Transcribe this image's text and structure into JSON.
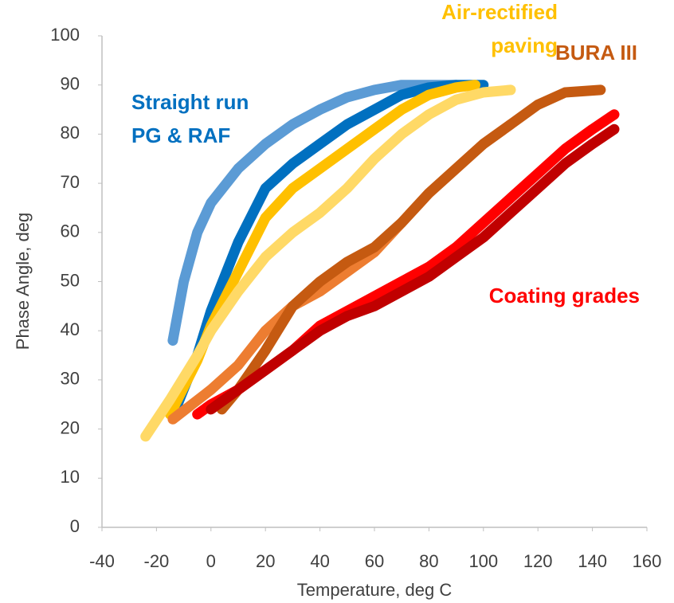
{
  "chart_data": {
    "type": "line",
    "x_label": "Temperature, deg C",
    "y_label": "Phase Angle, deg",
    "xlim": [
      -40,
      160
    ],
    "xticks": [
      -40,
      -20,
      0,
      20,
      40,
      60,
      80,
      100,
      120,
      140,
      160
    ],
    "ylim": [
      0,
      100
    ],
    "yticks": [
      0,
      10,
      20,
      30,
      40,
      50,
      60,
      70,
      80,
      90,
      100
    ],
    "grid": false,
    "series": [
      {
        "color": "#5b9bd5",
        "x": [
          -14,
          -10,
          -5,
          0,
          10,
          20,
          30,
          40,
          50,
          60,
          70,
          80,
          90
        ],
        "values": [
          38,
          50,
          60,
          66,
          73,
          78,
          82,
          85,
          87.5,
          89,
          90,
          90,
          90
        ]
      },
      {
        "color": "#0070c0",
        "x": [
          -13,
          -5,
          0,
          10,
          20,
          30,
          40,
          50,
          60,
          70,
          80,
          90,
          100
        ],
        "values": [
          24,
          35,
          44,
          58,
          69,
          74,
          78,
          82,
          85,
          88,
          89.5,
          90,
          90
        ]
      },
      {
        "color": "#ffc000",
        "x": [
          -15,
          -5,
          0,
          10,
          20,
          30,
          40,
          50,
          60,
          70,
          80,
          90,
          97
        ],
        "values": [
          23,
          34,
          41,
          52,
          63,
          69,
          73,
          77,
          81,
          85,
          88,
          89.5,
          90
        ]
      },
      {
        "color": "#ffd966",
        "x": [
          -24,
          -15,
          -5,
          0,
          10,
          20,
          30,
          40,
          50,
          60,
          70,
          80,
          90,
          100,
          110
        ],
        "values": [
          18.5,
          26,
          35,
          40,
          48,
          55,
          60,
          64,
          69,
          75,
          80,
          84,
          87,
          88.5,
          89
        ]
      },
      {
        "color": "#ed7d31",
        "x": [
          -14,
          0,
          10,
          20,
          30,
          40,
          50,
          60,
          70,
          80,
          90,
          100,
          110
        ],
        "values": [
          22,
          28,
          33,
          40,
          45,
          48,
          52,
          56,
          62,
          68,
          73,
          78,
          82
        ]
      },
      {
        "color": "#c55a11",
        "x": [
          4,
          10,
          20,
          30,
          40,
          50,
          60,
          70,
          80,
          90,
          100,
          110,
          120,
          130,
          143
        ],
        "values": [
          24,
          28,
          36,
          45,
          50,
          54,
          57,
          62,
          68,
          73,
          78,
          82,
          86,
          88.5,
          89
        ]
      },
      {
        "color": "#ff0000",
        "x": [
          -5,
          0,
          10,
          20,
          30,
          40,
          50,
          60,
          70,
          80,
          90,
          100,
          110,
          120,
          130,
          140,
          148
        ],
        "values": [
          23,
          25,
          28,
          32,
          36,
          41,
          44,
          47,
          50,
          53,
          57,
          62,
          67,
          72,
          77,
          81,
          84
        ]
      },
      {
        "color": "#c00000",
        "x": [
          0,
          10,
          20,
          30,
          40,
          50,
          60,
          70,
          80,
          90,
          100,
          110,
          120,
          130,
          140,
          148
        ],
        "values": [
          24,
          28,
          32,
          36,
          40,
          43,
          45,
          48,
          51,
          55,
          59,
          64,
          69,
          74,
          78,
          81
        ]
      }
    ],
    "annotations": [
      {
        "lines": [
          "Straight run",
          "PG & RAF"
        ],
        "color": "#0070c0"
      },
      {
        "lines": [
          "Air-rectified",
          "paving"
        ],
        "color": "#ffc000"
      },
      {
        "lines": [
          "BURA III"
        ],
        "color": "#c55a11"
      },
      {
        "lines": [
          "Coating grades"
        ],
        "color": "#ff0000"
      }
    ]
  }
}
